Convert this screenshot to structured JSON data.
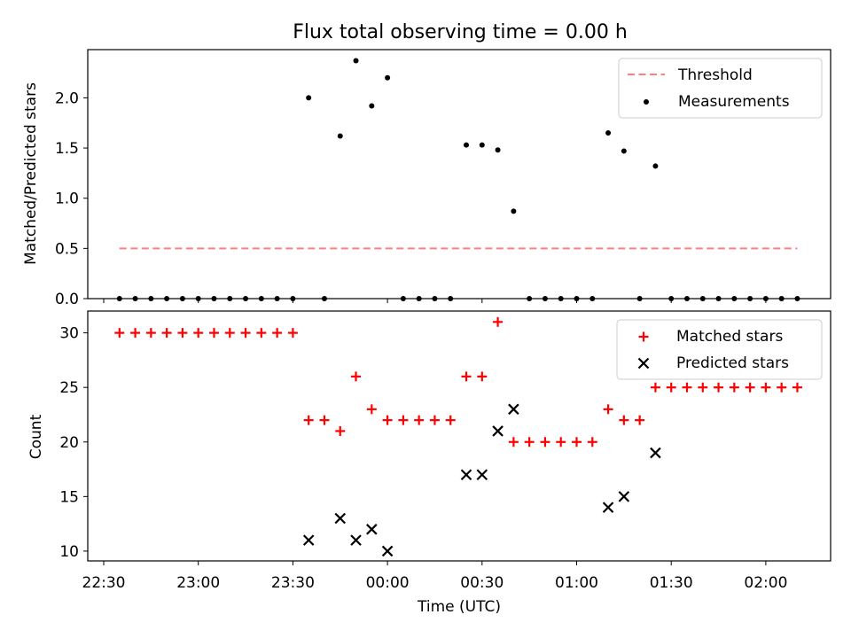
{
  "figure_title": "Flux total observing time = 0.00 h",
  "x_axis": {
    "label": "Time (UTC)",
    "tick_labels": [
      "22:30",
      "23:00",
      "23:30",
      "00:00",
      "00:30",
      "01:00",
      "01:30",
      "02:00"
    ]
  },
  "colors": {
    "threshold": "#ff7f7f",
    "measurements": "#000000",
    "matched": "#ff0000",
    "predicted": "#000000"
  },
  "chart_data": [
    {
      "type": "scatter",
      "title": "Flux total observing time = 0.00 h",
      "xlabel": "",
      "ylabel": "Matched/Predicted stars",
      "ylim": [
        0,
        2.48
      ],
      "yticks": [
        0.0,
        0.5,
        1.0,
        1.5,
        2.0
      ],
      "ytick_labels": [
        "0.0",
        "0.5",
        "1.0",
        "1.5",
        "2.0"
      ],
      "legend_position": "top-right",
      "threshold": {
        "name": "Threshold",
        "style": "dashed",
        "x": [
          "22:35",
          "02:10"
        ],
        "y": 0.5
      },
      "series": [
        {
          "name": "Measurements",
          "x": [
            "22:35",
            "22:40",
            "22:45",
            "22:50",
            "22:55",
            "23:00",
            "23:05",
            "23:10",
            "23:15",
            "23:20",
            "23:25",
            "23:30",
            "23:35",
            "23:40",
            "23:45",
            "23:50",
            "23:55",
            "00:00",
            "00:05",
            "00:10",
            "00:15",
            "00:20",
            "00:25",
            "00:30",
            "00:35",
            "00:40",
            "00:45",
            "00:50",
            "00:55",
            "01:00",
            "01:05",
            "01:10",
            "01:15",
            "01:20",
            "01:25",
            "01:30",
            "01:35",
            "01:40",
            "01:45",
            "01:50",
            "01:55",
            "02:00",
            "02:05",
            "02:10"
          ],
          "values": [
            0,
            0,
            0,
            0,
            0,
            0,
            0,
            0,
            0,
            0,
            0,
            0,
            2.0,
            0,
            1.62,
            2.37,
            1.92,
            2.2,
            0,
            0,
            0,
            0,
            1.53,
            1.53,
            1.48,
            0.87,
            0,
            0,
            0,
            0,
            0,
            1.65,
            1.47,
            0,
            1.32,
            0,
            0,
            0,
            0,
            0,
            0,
            0,
            0,
            0
          ]
        }
      ]
    },
    {
      "type": "scatter",
      "title": "",
      "xlabel": "Time (UTC)",
      "ylabel": "Count",
      "ylim": [
        9.1,
        32
      ],
      "yticks": [
        10,
        15,
        20,
        25,
        30
      ],
      "ytick_labels": [
        "10",
        "15",
        "20",
        "25",
        "30"
      ],
      "legend_position": "top-right",
      "series": [
        {
          "name": "Matched stars",
          "marker": "+",
          "x": [
            "22:35",
            "22:40",
            "22:45",
            "22:50",
            "22:55",
            "23:00",
            "23:05",
            "23:10",
            "23:15",
            "23:20",
            "23:25",
            "23:30",
            "23:35",
            "23:40",
            "23:45",
            "23:50",
            "23:55",
            "00:00",
            "00:05",
            "00:10",
            "00:15",
            "00:20",
            "00:25",
            "00:30",
            "00:35",
            "00:40",
            "00:45",
            "00:50",
            "00:55",
            "01:00",
            "01:05",
            "01:10",
            "01:15",
            "01:20",
            "01:25",
            "01:30",
            "01:35",
            "01:40",
            "01:45",
            "01:50",
            "01:55",
            "02:00",
            "02:05",
            "02:10"
          ],
          "values": [
            30,
            30,
            30,
            30,
            30,
            30,
            30,
            30,
            30,
            30,
            30,
            30,
            22,
            22,
            21,
            26,
            23,
            22,
            22,
            22,
            22,
            22,
            26,
            26,
            31,
            20,
            20,
            20,
            20,
            20,
            20,
            23,
            22,
            22,
            25,
            25,
            25,
            25,
            25,
            25,
            25,
            25,
            25,
            25
          ]
        },
        {
          "name": "Predicted stars",
          "marker": "x",
          "x": [
            "23:35",
            "23:45",
            "23:50",
            "23:55",
            "00:00",
            "00:25",
            "00:30",
            "00:35",
            "00:40",
            "01:10",
            "01:15",
            "01:25"
          ],
          "values": [
            11,
            13,
            11,
            12,
            10,
            17,
            17,
            21,
            23,
            14,
            15,
            19
          ]
        }
      ]
    }
  ]
}
